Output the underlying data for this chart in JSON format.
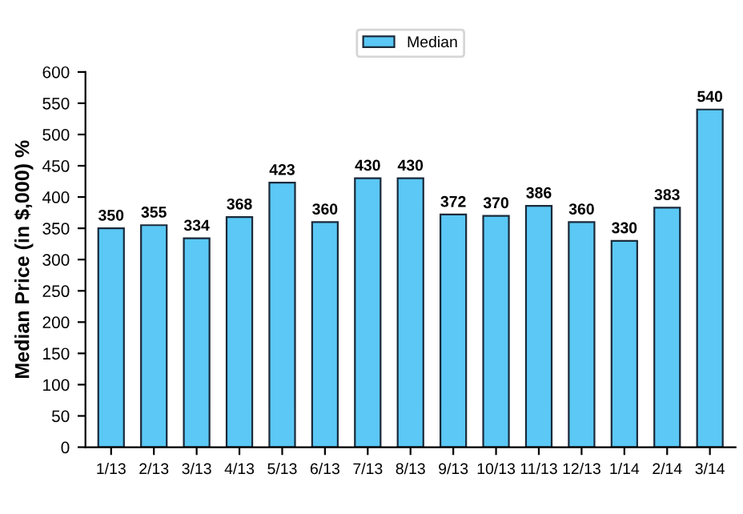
{
  "chart_data": {
    "type": "bar",
    "ylabel": "Median Price (in $,000) %",
    "categories": [
      "1/13",
      "2/13",
      "3/13",
      "4/13",
      "5/13",
      "6/13",
      "7/13",
      "8/13",
      "9/13",
      "10/13",
      "11/13",
      "12/13",
      "1/14",
      "2/14",
      "3/14"
    ],
    "series": [
      {
        "name": "Median",
        "color": "#5bc8f5",
        "values": [
          350,
          355,
          334,
          368,
          423,
          360,
          430,
          430,
          372,
          370,
          386,
          360,
          330,
          383,
          540
        ]
      }
    ],
    "ylim": [
      0,
      600
    ],
    "yticks": [
      0,
      50,
      100,
      150,
      200,
      250,
      300,
      350,
      400,
      450,
      500,
      550,
      600
    ],
    "data_labels": true,
    "legend": "top",
    "grid": false
  }
}
